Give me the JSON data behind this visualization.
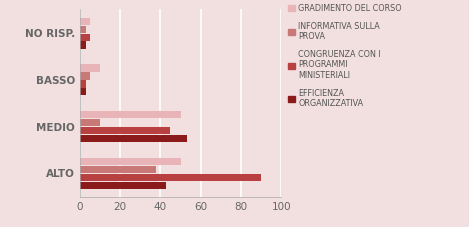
{
  "categories": [
    "ALTO",
    "MEDIO",
    "BASSO",
    "NO RISP."
  ],
  "series": [
    {
      "label": "GRADIMENTO DEL CORSO",
      "color": "#e8b4b8",
      "values": [
        50,
        50,
        10,
        5
      ]
    },
    {
      "label": "INFORMATIVA SULLA\nPROVA",
      "color": "#c97878",
      "values": [
        38,
        10,
        5,
        3
      ]
    },
    {
      "label": "CONGRUENZA CON I\nPROGRAMMI\nMINISTERIALI",
      "color": "#b84040",
      "values": [
        90,
        45,
        3,
        5
      ]
    },
    {
      "label": "EFFICIENZA\nORGANIZZATIVA",
      "color": "#8b1a1a",
      "values": [
        43,
        53,
        3,
        3
      ]
    }
  ],
  "xlim": [
    0,
    100
  ],
  "xticks": [
    0,
    20,
    40,
    60,
    80,
    100
  ],
  "background_color": "#f2e0e0",
  "plot_bg_color": "#f2e0e0",
  "bar_height": 0.17,
  "title": "",
  "xlabel": "",
  "ylabel": ""
}
